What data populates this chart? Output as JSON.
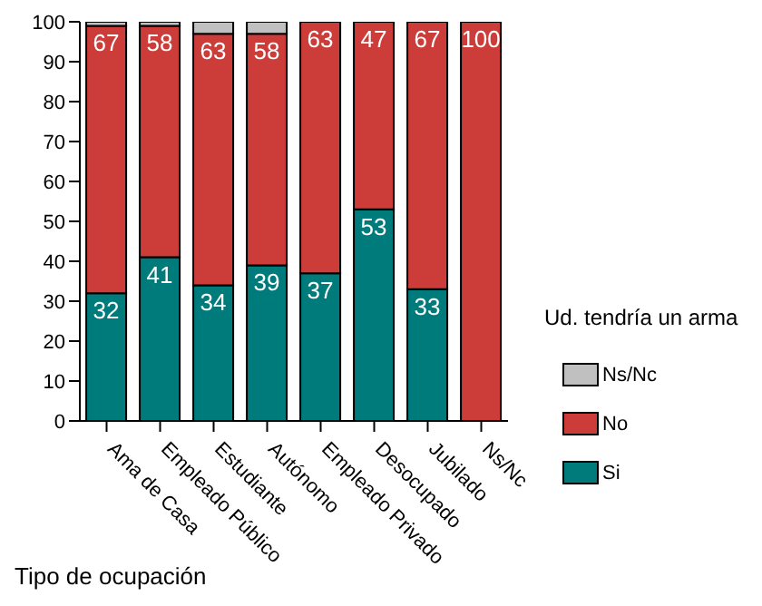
{
  "chart_data": {
    "type": "bar",
    "stacked": true,
    "xlabel": "Tipo de ocupación",
    "legend_title": "Ud. tendría un arma",
    "legend": "right",
    "categories": [
      "Ama de Casa",
      "Empleado Público",
      "Estudiante",
      "Autónomo",
      "Empleado Privado",
      "Desocupado",
      "Jubilado",
      "Ns/Nc"
    ],
    "series": [
      {
        "name": "Si",
        "color": "#007b7b",
        "values": [
          32,
          41,
          34,
          39,
          37,
          53,
          33,
          0
        ],
        "value_labels": [
          "32",
          "41",
          "34",
          "39",
          "37",
          "53",
          "33",
          null
        ]
      },
      {
        "name": "No",
        "color": "#cc3d3a",
        "values": [
          67,
          58,
          63,
          58,
          63,
          47,
          67,
          100
        ],
        "value_labels": [
          "67",
          "58",
          "63",
          "58",
          "63",
          "47",
          "67",
          "100"
        ]
      },
      {
        "name": "Ns/Nc",
        "color": "#c0c0c0",
        "values": [
          1,
          1,
          3,
          3,
          0,
          0,
          0,
          0
        ],
        "value_labels": [
          null,
          null,
          null,
          null,
          null,
          null,
          null,
          null
        ]
      }
    ],
    "ylim": [
      0,
      100
    ],
    "yticks": [
      0,
      10,
      20,
      30,
      40,
      50,
      60,
      70,
      80,
      90,
      100
    ]
  }
}
